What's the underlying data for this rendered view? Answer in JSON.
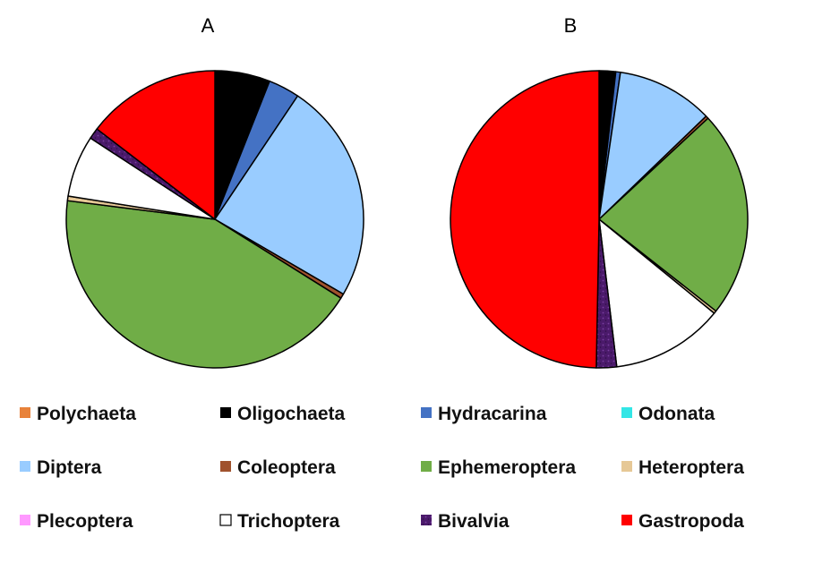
{
  "chart_data": {
    "type": "pie",
    "categories": [
      "Polychaeta",
      "Oligochaeta",
      "Hydracarina",
      "Odonata",
      "Diptera",
      "Coleoptera",
      "Ephemeroptera",
      "Heteroptera",
      "Plecoptera",
      "Trichoptera",
      "Bivalvia",
      "Gastropoda"
    ],
    "colors": {
      "Polychaeta": "#E8823A",
      "Oligochaeta": "#000000",
      "Hydracarina": "#4472C4",
      "Odonata": "#33E6E6",
      "Diptera": "#99CCFF",
      "Coleoptera": "#A0522D",
      "Ephemeroptera": "#70AD47",
      "Heteroptera": "#E6C896",
      "Plecoptera": "#FF99FF",
      "Trichoptera": "#FFFFFF",
      "Bivalvia": "#4B1A6B",
      "Gastropoda": "#FF0000"
    },
    "pies": [
      {
        "title": "A",
        "slices": [
          {
            "label": "Polychaeta",
            "value": 0.0
          },
          {
            "label": "Oligochaeta",
            "value": 6.0
          },
          {
            "label": "Hydracarina",
            "value": 3.4
          },
          {
            "label": "Odonata",
            "value": 0.0
          },
          {
            "label": "Diptera",
            "value": 24.0
          },
          {
            "label": "Coleoptera",
            "value": 0.5
          },
          {
            "label": "Ephemeroptera",
            "value": 43.1
          },
          {
            "label": "Heteroptera",
            "value": 0.5
          },
          {
            "label": "Plecoptera",
            "value": 0.0
          },
          {
            "label": "Trichoptera",
            "value": 6.7
          },
          {
            "label": "Bivalvia",
            "value": 1.2
          },
          {
            "label": "Gastropoda",
            "value": 14.6
          }
        ]
      },
      {
        "title": "B",
        "slices": [
          {
            "label": "Polychaeta",
            "value": 0.0
          },
          {
            "label": "Oligochaeta",
            "value": 1.8
          },
          {
            "label": "Hydracarina",
            "value": 0.5
          },
          {
            "label": "Odonata",
            "value": 0.0
          },
          {
            "label": "Diptera",
            "value": 10.5
          },
          {
            "label": "Coleoptera",
            "value": 0.3
          },
          {
            "label": "Ephemeroptera",
            "value": 22.5
          },
          {
            "label": "Heteroptera",
            "value": 0.3
          },
          {
            "label": "Plecoptera",
            "value": 0.0
          },
          {
            "label": "Trichoptera",
            "value": 12.2
          },
          {
            "label": "Bivalvia",
            "value": 2.2
          },
          {
            "label": "Gastropoda",
            "value": 49.7
          }
        ]
      }
    ],
    "legend_position": "bottom"
  }
}
